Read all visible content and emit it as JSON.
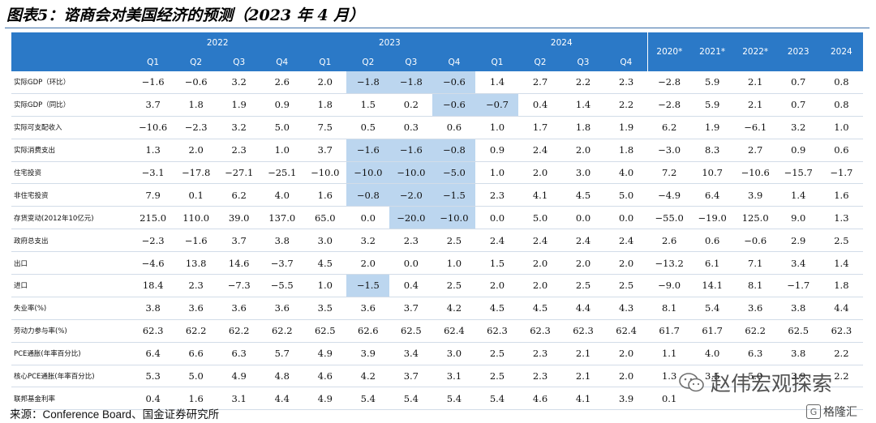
{
  "title": "图表5：谘商会对美国经济的预测（2023 年 4 月）",
  "header": {
    "years": [
      "2022",
      "2023",
      "2024"
    ],
    "quarters": [
      "Q1",
      "Q2",
      "Q3",
      "Q4",
      "Q1",
      "Q2",
      "Q3",
      "Q4",
      "Q1",
      "Q2",
      "Q3",
      "Q4"
    ],
    "annual": [
      "2020*",
      "2021*",
      "2022*",
      "2023",
      "2024"
    ]
  },
  "rows": [
    {
      "label": "实际GDP（环比）",
      "values": [
        "−1.6",
        "−0.6",
        "3.2",
        "2.6",
        "2.0",
        "−1.8",
        "−1.8",
        "−0.6",
        "1.4",
        "2.7",
        "2.2",
        "2.3",
        "−2.8",
        "5.9",
        "2.1",
        "0.7",
        "0.8"
      ],
      "highlight": [
        5,
        6,
        7
      ]
    },
    {
      "label": "实际GDP（同比）",
      "values": [
        "3.7",
        "1.8",
        "1.9",
        "0.9",
        "1.8",
        "1.5",
        "0.2",
        "−0.6",
        "−0.7",
        "0.4",
        "1.4",
        "2.2",
        "−2.8",
        "5.9",
        "2.1",
        "0.7",
        "0.8"
      ],
      "highlight": [
        7,
        8
      ]
    },
    {
      "label": "实际可支配收入",
      "values": [
        "−10.6",
        "−2.3",
        "3.2",
        "5.0",
        "7.5",
        "0.5",
        "0.3",
        "0.6",
        "1.0",
        "1.7",
        "1.8",
        "1.9",
        "6.2",
        "1.9",
        "−6.1",
        "3.2",
        "1.0"
      ],
      "highlight": []
    },
    {
      "label": "实际消费支出",
      "values": [
        "1.3",
        "2.0",
        "2.3",
        "1.0",
        "3.7",
        "−1.6",
        "−1.6",
        "−0.8",
        "0.9",
        "2.4",
        "2.0",
        "1.8",
        "−3.0",
        "8.3",
        "2.7",
        "0.9",
        "0.6"
      ],
      "highlight": [
        5,
        6,
        7
      ]
    },
    {
      "label": "住宅投资",
      "values": [
        "−3.1",
        "−17.8",
        "−27.1",
        "−25.1",
        "−10.0",
        "−10.0",
        "−10.0",
        "−5.0",
        "1.0",
        "2.0",
        "3.0",
        "4.0",
        "7.2",
        "10.7",
        "−10.6",
        "−15.7",
        "−1.7"
      ],
      "highlight": [
        5,
        6,
        7
      ]
    },
    {
      "label": "非住宅投资",
      "values": [
        "7.9",
        "0.1",
        "6.2",
        "4.0",
        "1.6",
        "−0.8",
        "−2.0",
        "−1.5",
        "2.3",
        "4.1",
        "4.5",
        "5.0",
        "−4.9",
        "6.4",
        "3.9",
        "1.4",
        "1.6"
      ],
      "highlight": [
        5,
        6,
        7
      ]
    },
    {
      "label": "存货变动(2012年10亿元)",
      "values": [
        "215.0",
        "110.0",
        "39.0",
        "137.0",
        "65.0",
        "0.0",
        "−20.0",
        "−10.0",
        "0.0",
        "5.0",
        "0.0",
        "0.0",
        "−55.0",
        "−19.0",
        "125.0",
        "9.0",
        "1.3"
      ],
      "highlight": [
        6,
        7
      ]
    },
    {
      "label": "政府总支出",
      "values": [
        "−2.3",
        "−1.6",
        "3.7",
        "3.8",
        "3.0",
        "3.2",
        "2.3",
        "2.5",
        "2.4",
        "2.4",
        "2.4",
        "2.4",
        "2.6",
        "0.6",
        "−0.6",
        "2.9",
        "2.5"
      ],
      "highlight": []
    },
    {
      "label": "出口",
      "values": [
        "−4.6",
        "13.8",
        "14.6",
        "−3.7",
        "4.5",
        "2.0",
        "0.0",
        "1.0",
        "1.5",
        "2.0",
        "2.0",
        "2.0",
        "−13.2",
        "6.1",
        "7.1",
        "3.4",
        "1.4"
      ],
      "highlight": []
    },
    {
      "label": "进口",
      "values": [
        "18.4",
        "2.3",
        "−7.3",
        "−5.5",
        "1.0",
        "−1.5",
        "0.4",
        "2.5",
        "2.0",
        "2.0",
        "2.5",
        "2.5",
        "−9.0",
        "14.1",
        "8.1",
        "−1.7",
        "1.8"
      ],
      "highlight": [
        5
      ]
    },
    {
      "label": "失业率(%)",
      "values": [
        "3.8",
        "3.6",
        "3.6",
        "3.6",
        "3.5",
        "3.6",
        "3.7",
        "4.2",
        "4.5",
        "4.5",
        "4.4",
        "4.3",
        "8.1",
        "5.4",
        "3.6",
        "3.8",
        "4.4"
      ],
      "highlight": []
    },
    {
      "label": "劳动力参与率(%)",
      "values": [
        "62.3",
        "62.2",
        "62.2",
        "62.2",
        "62.5",
        "62.6",
        "62.5",
        "62.4",
        "62.3",
        "62.3",
        "62.3",
        "62.4",
        "61.7",
        "61.7",
        "62.2",
        "62.5",
        "62.3"
      ],
      "highlight": []
    },
    {
      "label": "PCE通胀(年率百分比)",
      "values": [
        "6.4",
        "6.6",
        "6.3",
        "5.7",
        "4.9",
        "3.9",
        "3.4",
        "3.0",
        "2.5",
        "2.3",
        "2.1",
        "2.0",
        "1.1",
        "4.0",
        "6.3",
        "3.8",
        "2.2"
      ],
      "highlight": []
    },
    {
      "label": "核心PCE通胀(年率百分比)",
      "values": [
        "5.3",
        "5.0",
        "4.9",
        "4.8",
        "4.6",
        "4.2",
        "3.7",
        "3.1",
        "2.5",
        "2.3",
        "2.1",
        "2.0",
        "1.3",
        "3.5",
        "5.0",
        "3.9",
        "2.2"
      ],
      "highlight": []
    },
    {
      "label": "联邦基金利率",
      "values": [
        "0.4",
        "1.6",
        "3.1",
        "4.4",
        "4.9",
        "5.4",
        "5.4",
        "5.4",
        "5.4",
        "4.6",
        "4.1",
        "3.9",
        "0.1",
        "",
        "",
        "",
        ""
      ],
      "highlight": []
    }
  ],
  "source": {
    "prefix": "来源：",
    "text": "Conference Board、国金证券研究所"
  },
  "watermark": {
    "text": "赵伟宏观探索"
  },
  "corner_logo": {
    "text": "格隆汇"
  },
  "colors": {
    "header_bg": "#2b79c7",
    "highlight": "#bcd6ef",
    "rule": "#3d6fa8"
  }
}
